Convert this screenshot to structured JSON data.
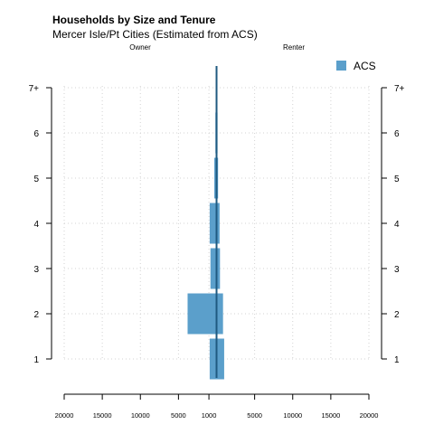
{
  "chart_data": {
    "type": "bar",
    "orientation": "horizontal",
    "style": "population-pyramid",
    "title": "Households by Size and Tenure",
    "subtitle": "Mercer Isle/Pt Cities (Estimated from ACS)",
    "left_group_label": "Owner",
    "right_group_label": "Renter",
    "categories": [
      "1",
      "2",
      "3",
      "4",
      "5",
      "6",
      "7+"
    ],
    "series": [
      {
        "name": "ACS",
        "color": "#5b9fcb",
        "owner": [
          900,
          3800,
          800,
          900,
          300,
          150,
          50
        ],
        "renter": [
          1000,
          850,
          450,
          400,
          200,
          130,
          70
        ]
      }
    ],
    "xlim": [
      -20000,
      20000
    ],
    "x_ticks": [
      -20000,
      -15000,
      -10000,
      -5000,
      -1000,
      5000,
      10000,
      15000,
      20000
    ],
    "x_tick_labels": [
      "20000",
      "15000",
      "10000",
      "5000",
      "1000",
      "5000",
      "10000",
      "15000",
      "20000"
    ],
    "grid": true,
    "legend_position": "top-right",
    "center_line": true
  }
}
